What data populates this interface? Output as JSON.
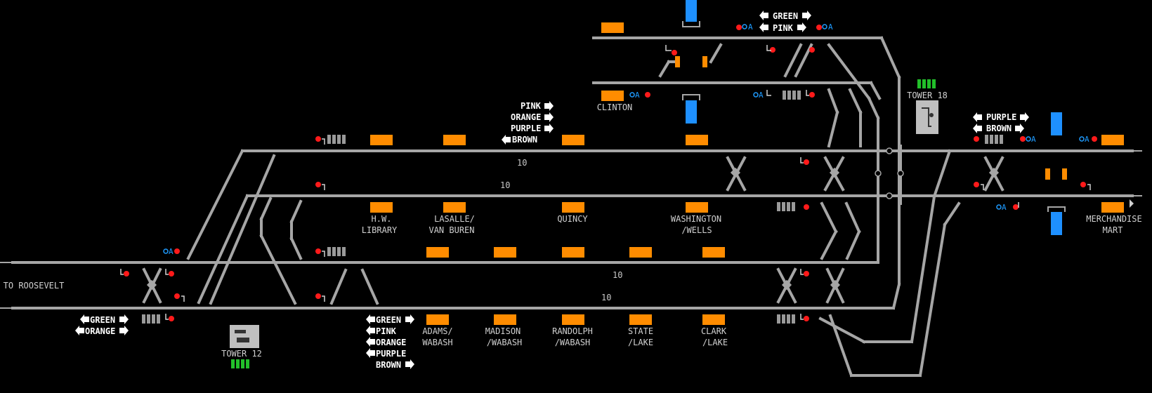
{
  "colors": {
    "background": "#000000",
    "track": "#a6a6a6",
    "signal_red": "#ff1a1a",
    "platform_orange": "#ff8c00",
    "blue_block": "#1e90ff",
    "green_indicator": "#22c02a",
    "tower_gray": "#bfbfbf",
    "auto_blue": "#1e9bff"
  },
  "labels": {
    "to_roosevelt": "TO ROOSEVELT",
    "tower12": "TOWER 12",
    "tower18": "TOWER 18",
    "clinton": "CLINTON",
    "hw_library_1": "H.W.",
    "hw_library_2": "LIBRARY",
    "lasalle_1": "LASALLE/",
    "lasalle_2": "VAN BUREN",
    "quincy": "QUINCY",
    "washington_1": "WASHINGTON",
    "washington_2": "/WELLS",
    "merchandise_1": "MERCHANDISE",
    "merchandise_2": "MART",
    "adams_1": "ADAMS/",
    "adams_2": "WABASH",
    "madison_1": "MADISON",
    "madison_2": "/WABASH",
    "randolph_1": "RANDOLPH",
    "randolph_2": "/WABASH",
    "state_1": "STATE",
    "state_2": "/LAKE",
    "clark_1": "CLARK",
    "clark_2": "/LAKE"
  },
  "track_numbers": {
    "t1": "10",
    "t2": "10",
    "t3": "10",
    "t4": "10"
  },
  "routes": {
    "top_green": "GREEN",
    "top_pink": "PINK",
    "mid_pink": "PINK",
    "mid_orange": "ORANGE",
    "mid_purple": "PURPLE",
    "mid_brown": "BROWN",
    "right_purple": "PURPLE",
    "right_brown": "BROWN",
    "left_green": "GREEN",
    "left_orange": "ORANGE",
    "bot_green": "GREEN",
    "bot_pink": "PINK",
    "bot_orange": "ORANGE",
    "bot_purple": "PURPLE",
    "bot_brown": "BROWN"
  },
  "auto": {
    "a1": "A",
    "a2": "A",
    "a3": "A",
    "a4": "A",
    "a5": "A",
    "a6": "A",
    "a7": "A",
    "a8": "A"
  }
}
